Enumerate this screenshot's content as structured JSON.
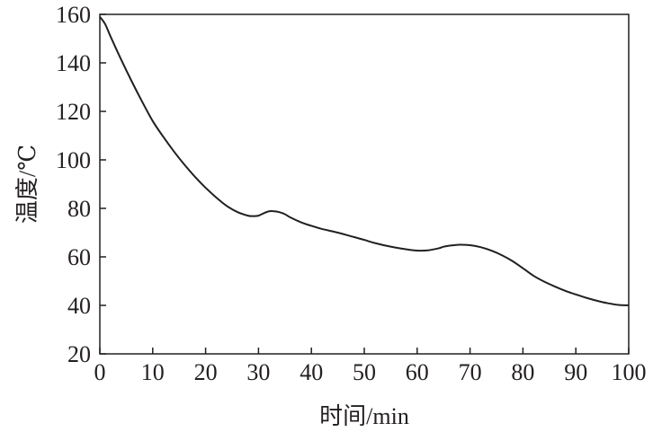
{
  "chart_data": {
    "type": "line",
    "title": "",
    "xlabel": "时间/min",
    "ylabel": "温度/℃",
    "xlim": [
      0,
      100
    ],
    "ylim": [
      20,
      160
    ],
    "xticks": [
      0,
      10,
      20,
      30,
      40,
      50,
      60,
      70,
      80,
      90,
      100
    ],
    "yticks": [
      20,
      40,
      60,
      80,
      100,
      120,
      140,
      160
    ],
    "grid": false,
    "legend": "none",
    "line_color": "#231f20",
    "series": [
      {
        "x": [
          0,
          1,
          2,
          4,
          6,
          8,
          10,
          12,
          14,
          16,
          18,
          20,
          22,
          24,
          26,
          28,
          29,
          30,
          31,
          32,
          33,
          34,
          35,
          36,
          38,
          40,
          42,
          45,
          48,
          50,
          52,
          55,
          58,
          60,
          62,
          64,
          65,
          66,
          68,
          70,
          72,
          74,
          76,
          78,
          80,
          82,
          84,
          86,
          88,
          90,
          92,
          94,
          96,
          98,
          100
        ],
        "values": [
          159,
          156,
          151,
          141.5,
          132.5,
          124,
          116,
          109.5,
          103.5,
          98,
          93,
          88.5,
          84.5,
          81,
          78.5,
          77,
          76.8,
          77,
          78,
          78.8,
          78.8,
          78.4,
          77.6,
          76.3,
          74.3,
          72.8,
          71.5,
          70,
          68.2,
          67,
          65.7,
          64.2,
          63.1,
          62.6,
          62.7,
          63.5,
          64.2,
          64.6,
          65,
          64.8,
          64,
          62.6,
          60.7,
          58.3,
          55.3,
          52.2,
          49.8,
          47.8,
          46,
          44.5,
          43.1,
          41.9,
          40.9,
          40.2,
          40
        ]
      }
    ]
  }
}
